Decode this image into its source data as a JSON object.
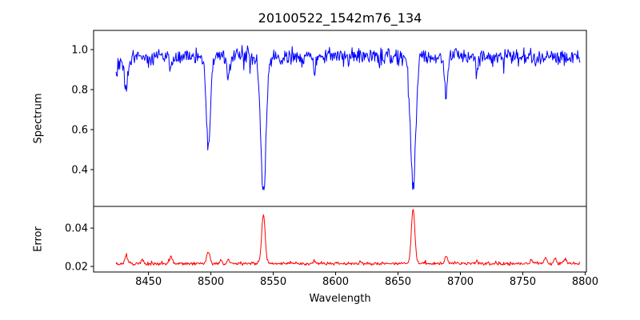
{
  "chart_data": {
    "type": "line",
    "title": "20100522_1542m76_134",
    "xlabel": "Wavelength",
    "xlim": [
      8406,
      8801
    ],
    "x_ticks": [
      "8450",
      "8500",
      "8550",
      "8600",
      "8650",
      "8700",
      "8750",
      "8800"
    ],
    "x_data_range": [
      8424,
      8796
    ],
    "grid": false,
    "legend": "none",
    "panels": [
      {
        "name": "spectrum",
        "ylabel": "Spectrum",
        "color": "#0000ff",
        "ylim": [
          0.216,
          1.096
        ],
        "y_ticks": [
          "0.4",
          "0.6",
          "0.8",
          "1.0"
        ],
        "continuum": 0.965,
        "noise_amplitude": 0.06,
        "absorption_lines": [
          {
            "center": 8422.0,
            "depth": 0.06,
            "sigma": 7.0
          },
          {
            "center": 8432.0,
            "depth": 0.13,
            "sigma": 1.2
          },
          {
            "center": 8468.0,
            "depth": 0.09,
            "sigma": 1.0
          },
          {
            "center": 8498.0,
            "depth": 0.47,
            "sigma": 1.6
          },
          {
            "center": 8514.0,
            "depth": 0.11,
            "sigma": 1.0
          },
          {
            "center": 8542.1,
            "depth": 0.68,
            "sigma": 2.1
          },
          {
            "center": 8583.0,
            "depth": 0.07,
            "sigma": 1.0
          },
          {
            "center": 8662.1,
            "depth": 0.66,
            "sigma": 2.1
          },
          {
            "center": 8688.6,
            "depth": 0.2,
            "sigma": 1.2
          },
          {
            "center": 8713.0,
            "depth": 0.08,
            "sigma": 1.0
          }
        ]
      },
      {
        "name": "error",
        "ylabel": "Error",
        "color": "#ff0000",
        "ylim": [
          0.0171,
          0.0513
        ],
        "y_ticks": [
          "0.02",
          "0.04"
        ],
        "baseline": 0.0215,
        "noise_amplitude": 0.0012,
        "peaks": [
          {
            "center": 8432.0,
            "height": 0.0045,
            "sigma": 1.0
          },
          {
            "center": 8445.0,
            "height": 0.0015,
            "sigma": 1.0
          },
          {
            "center": 8468.0,
            "height": 0.0035,
            "sigma": 1.1
          },
          {
            "center": 8498.0,
            "height": 0.0062,
            "sigma": 1.2
          },
          {
            "center": 8508.0,
            "height": 0.0018,
            "sigma": 1.0
          },
          {
            "center": 8514.0,
            "height": 0.002,
            "sigma": 1.0
          },
          {
            "center": 8542.1,
            "height": 0.0255,
            "sigma": 1.4
          },
          {
            "center": 8583.0,
            "height": 0.0012,
            "sigma": 1.0
          },
          {
            "center": 8620.0,
            "height": 0.001,
            "sigma": 1.0
          },
          {
            "center": 8662.1,
            "height": 0.0285,
            "sigma": 1.4
          },
          {
            "center": 8688.6,
            "height": 0.0038,
            "sigma": 1.1
          },
          {
            "center": 8713.0,
            "height": 0.0012,
            "sigma": 1.0
          },
          {
            "center": 8757.0,
            "height": 0.0018,
            "sigma": 1.0
          },
          {
            "center": 8768.0,
            "height": 0.003,
            "sigma": 1.0
          },
          {
            "center": 8776.0,
            "height": 0.0026,
            "sigma": 1.0
          },
          {
            "center": 8784.0,
            "height": 0.002,
            "sigma": 1.0
          }
        ]
      }
    ]
  }
}
